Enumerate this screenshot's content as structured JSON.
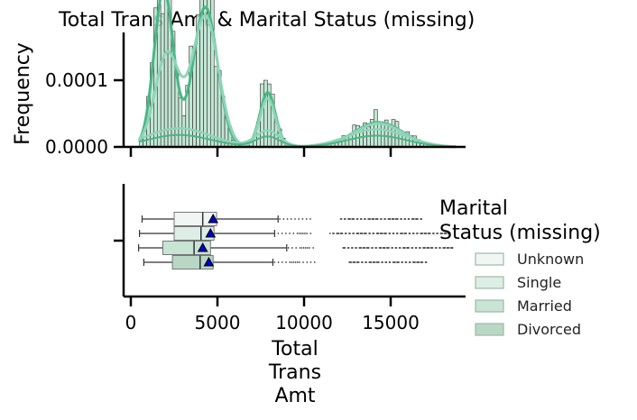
{
  "chart_data": {
    "type": "histogram+boxplot",
    "title": "Total Trans Amt & Marital Status (missing)",
    "hist": {
      "ylabel": "Frequency",
      "ylim": [
        0,
        0.00017
      ],
      "yticks": [
        0,
        0.0001
      ],
      "ytick_labels": [
        "0.0000",
        "0.0001"
      ],
      "xlim": [
        -500,
        19500
      ],
      "xticks": [
        0,
        5000,
        10000,
        15000
      ]
    },
    "box": {
      "xlabel": "Total\nTrans\nAmt",
      "xlim": [
        -500,
        19500
      ],
      "xticks": [
        0,
        5000,
        10000,
        15000
      ],
      "xtick_labels": [
        "0",
        "5000",
        "10000",
        "15000"
      ],
      "series": [
        {
          "name": "Unknown",
          "color": "#eff6f3",
          "whisker_low": 650,
          "q1": 2500,
          "median": 4150,
          "q3": 4950,
          "whisker_high": 8500,
          "mean": 4750,
          "outliers_near": [
            8600,
            10400
          ],
          "outliers_far": [
            12000,
            16800
          ]
        },
        {
          "name": "Single",
          "color": "#ddeee6",
          "whisker_low": 500,
          "q1": 2500,
          "median": 4050,
          "q3": 4800,
          "whisker_high": 8300,
          "mean": 4600,
          "outliers_near": [
            8400,
            10500
          ],
          "outliers_far": [
            11500,
            18500
          ]
        },
        {
          "name": "Married",
          "color": "#c7e4d4",
          "whisker_low": 450,
          "q1": 1850,
          "median": 3650,
          "q3": 4600,
          "whisker_high": 9000,
          "mean": 4150,
          "outliers_near": [
            9100,
            10600
          ],
          "outliers_far": [
            12200,
            18700
          ]
        },
        {
          "name": "Divorced",
          "color": "#b8d8c5",
          "whisker_low": 750,
          "q1": 2400,
          "median": 4000,
          "q3": 4750,
          "whisker_high": 8200,
          "mean": 4500,
          "outliers_near": [
            8300,
            10800
          ],
          "outliers_far": [
            12500,
            17200
          ]
        }
      ]
    },
    "legend": {
      "title_line1": "Marital",
      "title_line2": "Status (missing)",
      "placement": "right",
      "entries": [
        "Unknown",
        "Single",
        "Married",
        "Divorced"
      ]
    },
    "colors": {
      "kde_dark": "#49b685",
      "kde_light": "#8fd4b8",
      "bar_fill": "#b7e2cd",
      "bar_stroke": "#2b2b2b",
      "mean_marker": "#0000cc"
    }
  }
}
